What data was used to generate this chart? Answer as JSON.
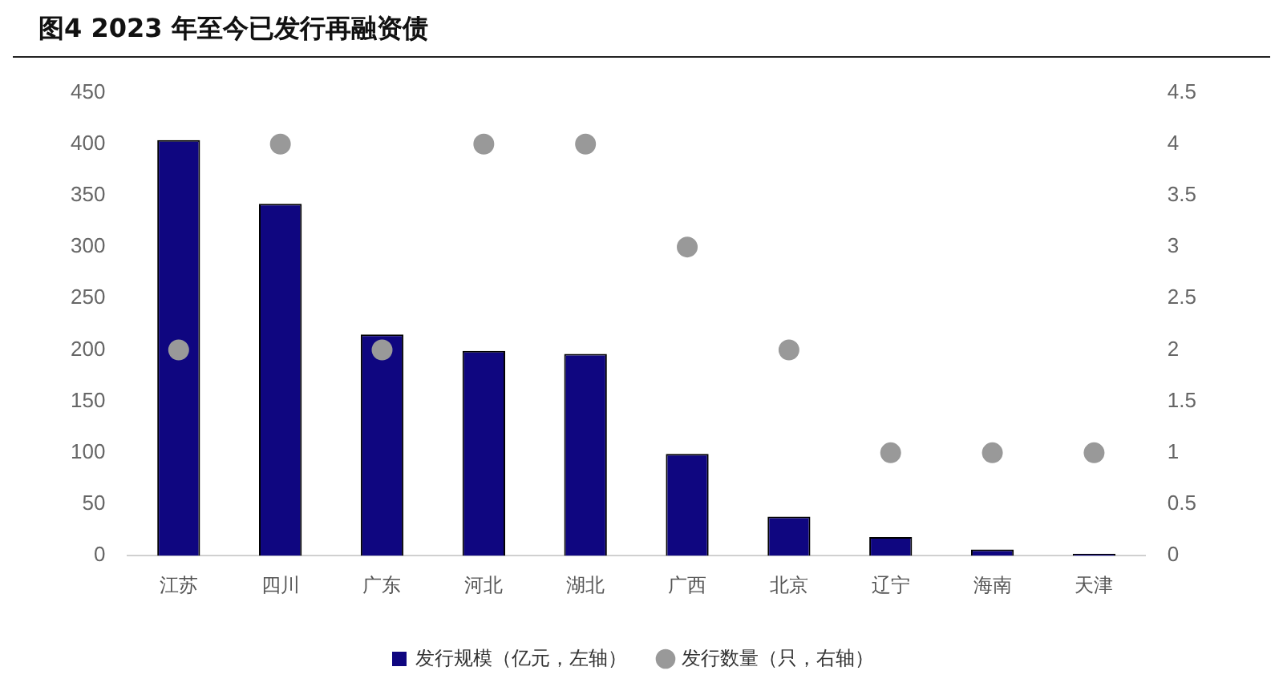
{
  "chart_data": {
    "type": "bar",
    "title": "图4  2023 年至今已发行再融资债",
    "categories": [
      "江苏",
      "四川",
      "广东",
      "河北",
      "湖北",
      "广西",
      "北京",
      "辽宁",
      "海南",
      "天津"
    ],
    "series": [
      {
        "name": "发行规模（亿元，左轴）",
        "color": "#0f0680",
        "values": [
          404,
          342,
          215,
          199,
          196,
          99,
          38,
          18,
          6,
          2
        ]
      },
      {
        "name": "发行数量（只，右轴）",
        "type": "scatter",
        "axis": "y2",
        "color": "#999999",
        "x": [
          "江苏",
          "四川",
          "广东",
          "河北",
          "湖北",
          "广西",
          "北京",
          "辽宁",
          "海南",
          "天津"
        ],
        "values": [
          2,
          4,
          2,
          4,
          4,
          3,
          2,
          1,
          1,
          1
        ]
      }
    ],
    "ylim": [
      0,
      450
    ],
    "yticks": [
      0,
      50,
      100,
      150,
      200,
      250,
      300,
      350,
      400,
      450
    ],
    "y2lim": [
      0,
      4.5
    ],
    "y2ticks": [
      0,
      0.5,
      1,
      1.5,
      2,
      2.5,
      3,
      3.5,
      4,
      4.5
    ],
    "grid": false,
    "legend": "bottom",
    "marker": "circle"
  }
}
